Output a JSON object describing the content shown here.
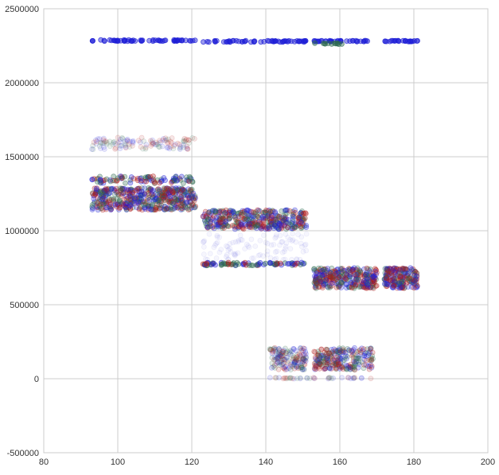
{
  "chart_data": {
    "type": "scatter",
    "title": "",
    "xlabel": "",
    "ylabel": "",
    "xlim": [
      80,
      200
    ],
    "ylim": [
      -500000,
      2500000
    ],
    "x_ticks": [
      80,
      100,
      120,
      140,
      160,
      180,
      200
    ],
    "y_ticks": [
      -500000,
      0,
      500000,
      1000000,
      1500000,
      2000000,
      2500000
    ],
    "x_tick_labels": [
      "80",
      "100",
      "120",
      "140",
      "160",
      "180",
      "200"
    ],
    "y_tick_labels": [
      "-500000",
      "0",
      "500000",
      "1000000",
      "1500000",
      "2000000",
      "2500000"
    ],
    "grid": true,
    "legend": "none",
    "marker_alpha": 0.15,
    "colors": {
      "blue": "#1f1fd6",
      "green": "#2e6b4f",
      "red": "#b01818",
      "background": "#ffffff",
      "grid": "#cccccc",
      "spine": "#cccccc"
    },
    "clusters": [
      {
        "x_range": [
          93,
          121
        ],
        "y_range": [
          2280000,
          2290000
        ],
        "count": 60,
        "colors": [
          "blue"
        ],
        "alpha": 0.45
      },
      {
        "x_range": [
          123,
          151
        ],
        "y_range": [
          2275000,
          2285000
        ],
        "count": 60,
        "colors": [
          "blue"
        ],
        "alpha": 0.45
      },
      {
        "x_range": [
          153,
          168
        ],
        "y_range": [
          2278000,
          2285000
        ],
        "count": 35,
        "colors": [
          "blue"
        ],
        "alpha": 0.45
      },
      {
        "x_range": [
          153,
          161
        ],
        "y_range": [
          2260000,
          2268000
        ],
        "count": 12,
        "colors": [
          "green"
        ],
        "alpha": 0.45
      },
      {
        "x_range": [
          172,
          181
        ],
        "y_range": [
          2278000,
          2285000
        ],
        "count": 25,
        "colors": [
          "blue"
        ],
        "alpha": 0.45
      },
      {
        "x_range": [
          93,
          121
        ],
        "y_range": [
          1550000,
          1630000
        ],
        "count": 120,
        "colors": [
          "blue",
          "green",
          "red"
        ],
        "alpha": 0.1
      },
      {
        "x_range": [
          93,
          121
        ],
        "y_range": [
          1320000,
          1370000
        ],
        "count": 90,
        "colors": [
          "blue",
          "green",
          "red"
        ],
        "alpha": 0.3
      },
      {
        "x_range": [
          93,
          121
        ],
        "y_range": [
          1140000,
          1290000
        ],
        "count": 500,
        "colors": [
          "blue",
          "green",
          "red"
        ],
        "alpha": 0.25
      },
      {
        "x_range": [
          123,
          151
        ],
        "y_range": [
          1010000,
          1140000
        ],
        "count": 400,
        "colors": [
          "blue",
          "green",
          "red"
        ],
        "alpha": 0.25
      },
      {
        "x_range": [
          123,
          151
        ],
        "y_range": [
          800000,
          990000
        ],
        "count": 100,
        "colors": [
          "blue"
        ],
        "alpha": 0.04
      },
      {
        "x_range": [
          123,
          151
        ],
        "y_range": [
          765000,
          785000
        ],
        "count": 80,
        "colors": [
          "blue",
          "green",
          "red"
        ],
        "alpha": 0.35
      },
      {
        "x_range": [
          153,
          170
        ],
        "y_range": [
          610000,
          750000
        ],
        "count": 320,
        "colors": [
          "blue",
          "green",
          "red"
        ],
        "alpha": 0.25
      },
      {
        "x_range": [
          172,
          181
        ],
        "y_range": [
          610000,
          750000
        ],
        "count": 200,
        "colors": [
          "blue",
          "green",
          "red"
        ],
        "alpha": 0.25
      },
      {
        "x_range": [
          141,
          151
        ],
        "y_range": [
          60000,
          210000
        ],
        "count": 150,
        "colors": [
          "green",
          "red",
          "blue"
        ],
        "alpha": 0.15
      },
      {
        "x_range": [
          153,
          169
        ],
        "y_range": [
          60000,
          210000
        ],
        "count": 240,
        "colors": [
          "green",
          "red",
          "blue"
        ],
        "alpha": 0.2
      },
      {
        "x_range": [
          141,
          169
        ],
        "y_range": [
          0,
          8000
        ],
        "count": 40,
        "colors": [
          "red",
          "blue",
          "green"
        ],
        "alpha": 0.1
      }
    ]
  }
}
